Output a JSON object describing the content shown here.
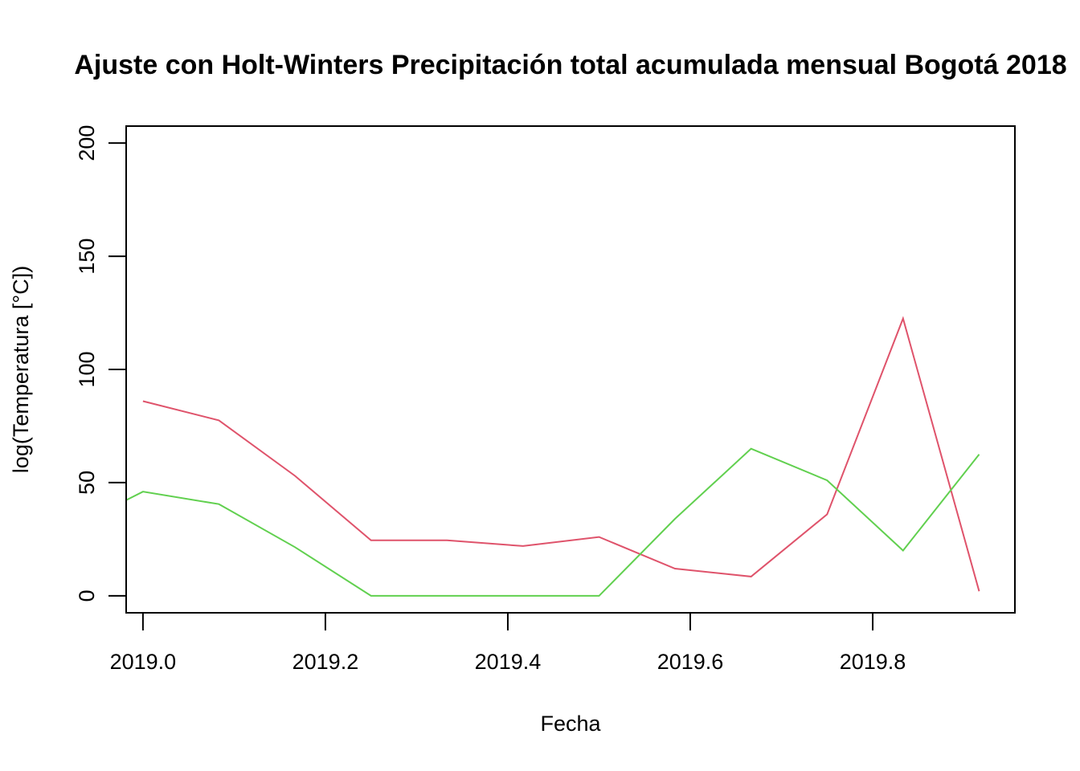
{
  "chart_data": {
    "type": "line",
    "title": "Ajuste con Holt-Winters Precipitación total acumulada mensual Bogotá 2018",
    "xlabel": "Fecha",
    "ylabel": "log(Temperatura [°C])",
    "xlim": [
      2018.9816,
      2019.9559
    ],
    "ylim": [
      -7.5,
      207.5
    ],
    "xticks": [
      2019.0,
      2019.2,
      2019.4,
      2019.6,
      2019.8
    ],
    "xtick_labels": [
      "2019.0",
      "2019.2",
      "2019.4",
      "2019.6",
      "2019.8"
    ],
    "yticks": [
      0,
      50,
      100,
      150,
      200
    ],
    "ytick_labels": [
      "0",
      "50",
      "100",
      "150",
      "200"
    ],
    "grid": false,
    "series": [
      {
        "color": "#DF536B",
        "x": [
          2019.0,
          2019.0833,
          2019.1667,
          2019.25,
          2019.3333,
          2019.4167,
          2019.5,
          2019.5833,
          2019.6667,
          2019.75,
          2019.8333,
          2019.9167
        ],
        "y": [
          86,
          77.5,
          53,
          24.5,
          24.5,
          22,
          26,
          12,
          8.5,
          36,
          122.5,
          2
        ]
      },
      {
        "color": "#61D04F",
        "x": [
          2018.9167,
          2019.0,
          2019.0833,
          2019.1667,
          2019.25,
          2019.3333,
          2019.4167,
          2019.5,
          2019.5833,
          2019.6667,
          2019.75,
          2019.8333,
          2019.9167
        ],
        "y": [
          29,
          46,
          40.5,
          21.5,
          0,
          0,
          0,
          0,
          34,
          65,
          51,
          20,
          62.5
        ]
      }
    ]
  }
}
